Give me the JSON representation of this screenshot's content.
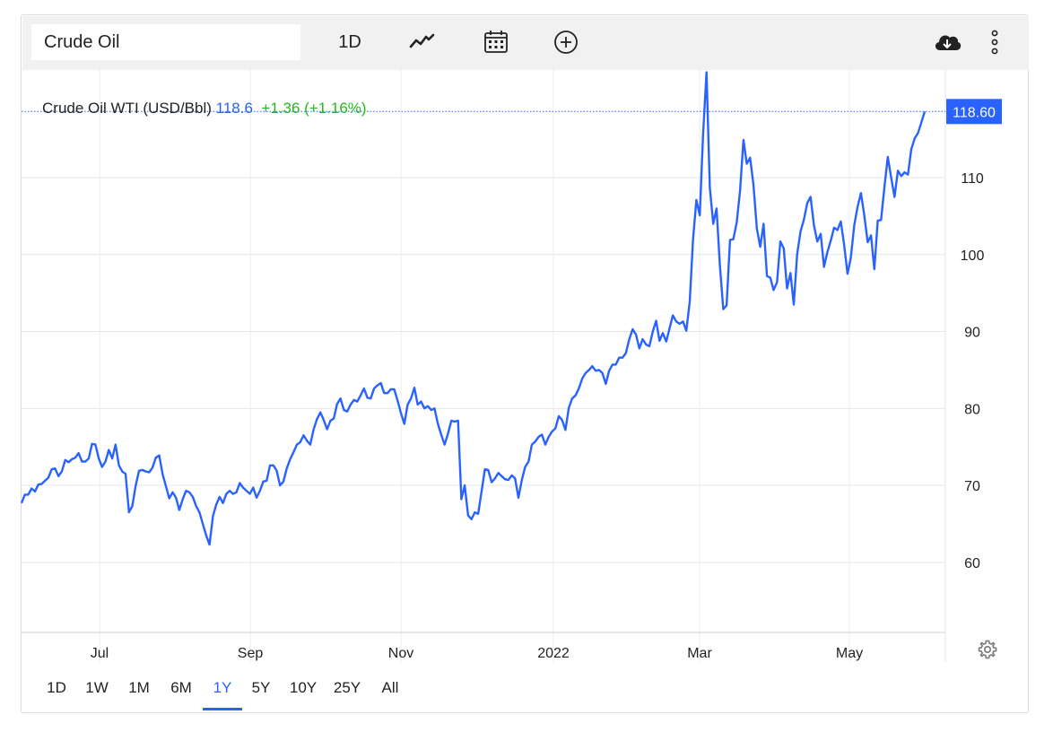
{
  "toolbar": {
    "search_value": "Crude Oil",
    "interval_label": "1D",
    "icons": [
      "line-chart-icon",
      "calendar-icon",
      "add-circle-icon",
      "cloud-download-icon",
      "more-vertical-icon"
    ]
  },
  "quote": {
    "name": "Crude Oil WTI (USD/Bbl)",
    "price": "118.6",
    "change": "+1.36 (+1.16%)"
  },
  "ranges": [
    "1D",
    "1W",
    "1M",
    "6M",
    "1Y",
    "5Y",
    "10Y",
    "25Y",
    "All"
  ],
  "active_range": "1Y",
  "colors": {
    "line": "#2962ff",
    "positive": "#22b822",
    "grid": "#e6e6e6"
  },
  "chart_data": {
    "type": "line",
    "title": "Crude Oil WTI (USD/Bbl)",
    "last_value_label": "118.60",
    "last_value": 118.6,
    "ylim": [
      51,
      124
    ],
    "y_ticks": [
      60,
      70,
      80,
      90,
      100,
      110
    ],
    "x_ticks": [
      "Jul",
      "Sep",
      "Nov",
      "2022",
      "Mar",
      "May"
    ],
    "grid": true,
    "series": [
      {
        "values": [
          67.7,
          68.8,
          68.8,
          69.6,
          69.2,
          70.1,
          70.2,
          70.6,
          71.0,
          72.1,
          72.2,
          71.2,
          71.8,
          73.3,
          73.0,
          73.4,
          73.6,
          74.2,
          73.1,
          73.1,
          73.5,
          75.4,
          75.3,
          73.5,
          72.4,
          73.1,
          74.6,
          73.5,
          75.3,
          72.6,
          71.8,
          71.5,
          66.5,
          67.3,
          70.0,
          71.9,
          72.0,
          71.8,
          71.7,
          72.3,
          73.6,
          73.9,
          71.5,
          69.9,
          68.3,
          69.1,
          68.4,
          66.8,
          68.2,
          69.3,
          69.1,
          68.5,
          67.3,
          66.5,
          65.0,
          63.5,
          62.3,
          66.0,
          67.5,
          68.5,
          67.7,
          68.9,
          69.3,
          68.9,
          69.1,
          70.3,
          69.7,
          69.3,
          68.9,
          69.7,
          68.4,
          69.3,
          70.5,
          70.6,
          72.6,
          72.6,
          71.9,
          70.0,
          70.5,
          72.2,
          73.4,
          74.3,
          75.3,
          75.6,
          76.5,
          75.8,
          75.3,
          77.3,
          78.6,
          79.5,
          78.5,
          77.3,
          78.4,
          78.7,
          80.6,
          81.3,
          79.8,
          79.6,
          80.5,
          81.1,
          80.9,
          81.7,
          82.6,
          81.4,
          81.3,
          82.6,
          83.0,
          83.3,
          82.0,
          82.0,
          82.5,
          82.5,
          81.0,
          79.4,
          78.0,
          80.5,
          81.3,
          82.7,
          80.5,
          80.9,
          80.0,
          80.3,
          79.8,
          80.0,
          78.0,
          76.6,
          75.3,
          76.7,
          78.4,
          78.3,
          78.4,
          68.2,
          70.0,
          66.1,
          65.6,
          66.5,
          66.3,
          69.2,
          72.1,
          72.0,
          70.4,
          70.9,
          71.6,
          71.2,
          70.8,
          70.7,
          71.3,
          70.9,
          68.4,
          70.7,
          72.4,
          73.1,
          75.3,
          75.7,
          76.3,
          76.6,
          75.3,
          76.3,
          77.0,
          77.4,
          79.0,
          78.5,
          77.2,
          80.1,
          81.3,
          81.7,
          82.6,
          83.9,
          84.6,
          85.0,
          85.5,
          84.9,
          85.0,
          84.6,
          83.2,
          84.9,
          85.7,
          85.7,
          86.6,
          86.6,
          87.2,
          89.0,
          90.3,
          89.6,
          87.8,
          89.0,
          88.3,
          88.1,
          90.0,
          91.4,
          88.8,
          89.8,
          88.7,
          90.4,
          92.1,
          91.3,
          91.0,
          91.3,
          90.1,
          93.9,
          102.0,
          107.1,
          105.1,
          115.7,
          123.7,
          108.7,
          104.0,
          106.0,
          98.6,
          92.9,
          93.4,
          101.9,
          102.0,
          104.2,
          108.3,
          114.9,
          111.8,
          112.6,
          109.0,
          103.4,
          101.0,
          104.0,
          97.2,
          97.0,
          95.4,
          96.4,
          101.7,
          100.8,
          95.6,
          97.6,
          93.5,
          100.0,
          103.0,
          104.5,
          106.7,
          107.5,
          103.8,
          101.7,
          102.7,
          98.4,
          100.3,
          101.8,
          103.5,
          103.2,
          104.3,
          101.2,
          97.5,
          99.6,
          103.8,
          106.2,
          108.0,
          105.1,
          101.6,
          102.5,
          98.1,
          104.4,
          104.5,
          108.8,
          112.7,
          110.0,
          107.5,
          110.9,
          110.2,
          110.7,
          110.4,
          113.7,
          115.1,
          115.8,
          117.2,
          118.6
        ]
      }
    ]
  }
}
